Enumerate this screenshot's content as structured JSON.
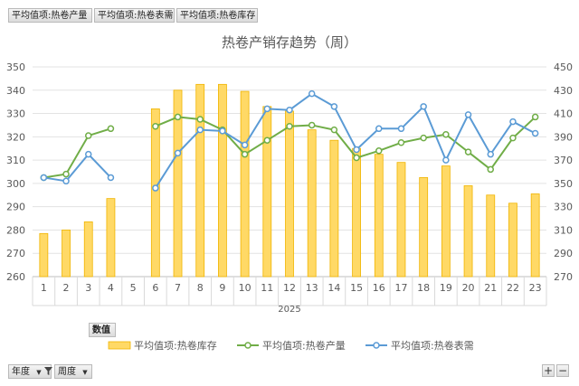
{
  "pivot": {
    "top_fields": [
      "平均值项:热卷产量",
      "平均值项:热卷表需",
      "平均值项:热卷库存"
    ],
    "values_label": "数值",
    "row_fields": [
      "年度",
      "周度"
    ],
    "zoom_in": "+",
    "zoom_out": "−"
  },
  "chart_data": {
    "type": "bar+line",
    "title": "热卷产销存趋势（周）",
    "group_label": "2025",
    "categories": [
      "1",
      "2",
      "3",
      "4",
      "5",
      "6",
      "7",
      "8",
      "9",
      "10",
      "11",
      "12",
      "13",
      "14",
      "15",
      "16",
      "17",
      "18",
      "19",
      "20",
      "21",
      "22",
      "23"
    ],
    "y_left": {
      "min": 260,
      "max": 350,
      "step": 10,
      "ticks": [
        "260",
        "270",
        "280",
        "290",
        "300",
        "310",
        "320",
        "330",
        "340",
        "350"
      ]
    },
    "y_right": {
      "min": 270,
      "max": 450,
      "step": 20,
      "ticks": [
        "270",
        "290",
        "310",
        "330",
        "350",
        "370",
        "390",
        "410",
        "430",
        "450"
      ]
    },
    "grid": true,
    "legend_position": "bottom",
    "series": [
      {
        "name": "平均值项:热卷库存",
        "kind": "bar",
        "axis": "left",
        "color": "#ffd966",
        "stroke": "#f0b400",
        "values": [
          278.5,
          280,
          283.5,
          293.5,
          null,
          332,
          340,
          342.5,
          342.5,
          339.5,
          333,
          331,
          323,
          318.5,
          315,
          312.5,
          309,
          302.5,
          307.5,
          299,
          295,
          291.5,
          295.5
        ]
      },
      {
        "name": "平均值项:热卷产量",
        "kind": "line",
        "axis": "right",
        "color": "#70ad47",
        "values": [
          355,
          358,
          391,
          397,
          null,
          399,
          407,
          405,
          396,
          375,
          387,
          399,
          400,
          396,
          372,
          378,
          385,
          389,
          392,
          377,
          362,
          389,
          407
        ]
      },
      {
        "name": "平均值项:热卷表需",
        "kind": "line",
        "axis": "right",
        "color": "#5b9bd5",
        "values": [
          355,
          352,
          375,
          355,
          null,
          346,
          376,
          396,
          395,
          383,
          414,
          413,
          427,
          416,
          379,
          397,
          397,
          416,
          370,
          409,
          375,
          403,
          393
        ]
      }
    ]
  }
}
